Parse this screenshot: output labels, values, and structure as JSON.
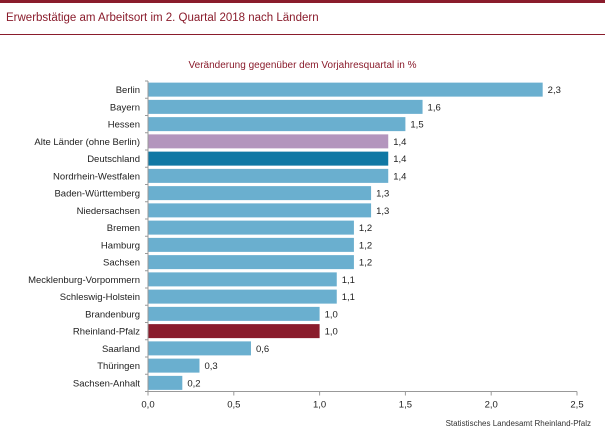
{
  "header": {
    "title": "Erwerbstätige  am  Arbeitsort  im 2. Quartal  2018  nach Ländern",
    "source": "Statistisches Landesamt  Rheinland-Pfalz"
  },
  "colors": {
    "accent": "#8a1c2c",
    "bar_default": "#6aafcf",
    "bar_west": "#b395bd",
    "bar_germany": "#0f78a4",
    "bar_rlp": "#8a1c2c",
    "axis": "#999999"
  },
  "chart_data": {
    "type": "bar",
    "orientation": "horizontal",
    "title": "Veränderung gegenüber dem Vorjahresquartal in %",
    "categories": [
      "Berlin",
      "Bayern",
      "Hessen",
      "Alte Länder (ohne Berlin)",
      "Deutschland",
      "Nordrhein-Westfalen",
      "Baden-Württemberg",
      "Niedersachsen",
      "Bremen",
      "Hamburg",
      "Sachsen",
      "Mecklenburg-Vorpommern",
      "Schleswig-Holstein",
      "Brandenburg",
      "Rheinland-Pfalz",
      "Saarland",
      "Thüringen",
      "Sachsen-Anhalt"
    ],
    "values": [
      2.3,
      1.6,
      1.5,
      1.4,
      1.4,
      1.4,
      1.3,
      1.3,
      1.2,
      1.2,
      1.2,
      1.1,
      1.1,
      1.0,
      1.0,
      0.6,
      0.3,
      0.2
    ],
    "value_labels": [
      "2,3",
      "1,6",
      "1,5",
      "1,4",
      "1,4",
      "1,4",
      "1,3",
      "1,3",
      "1,2",
      "1,2",
      "1,2",
      "1,1",
      "1,1",
      "1,0",
      "1,0",
      "0,6",
      "0,3",
      "0,2"
    ],
    "highlight": {
      "Alte Länder (ohne Berlin)": "#b395bd",
      "Deutschland": "#0f78a4",
      "Rheinland-Pfalz": "#8a1c2c"
    },
    "xlim": [
      0,
      2.5
    ],
    "xticks": [
      0,
      0.5,
      1.0,
      1.5,
      2.0,
      2.5
    ],
    "xtick_labels": [
      "0,0",
      "0,5",
      "1,0",
      "1,5",
      "2,0",
      "2,5"
    ],
    "xlabel": "",
    "ylabel": "",
    "grid": false,
    "legend": "none"
  }
}
